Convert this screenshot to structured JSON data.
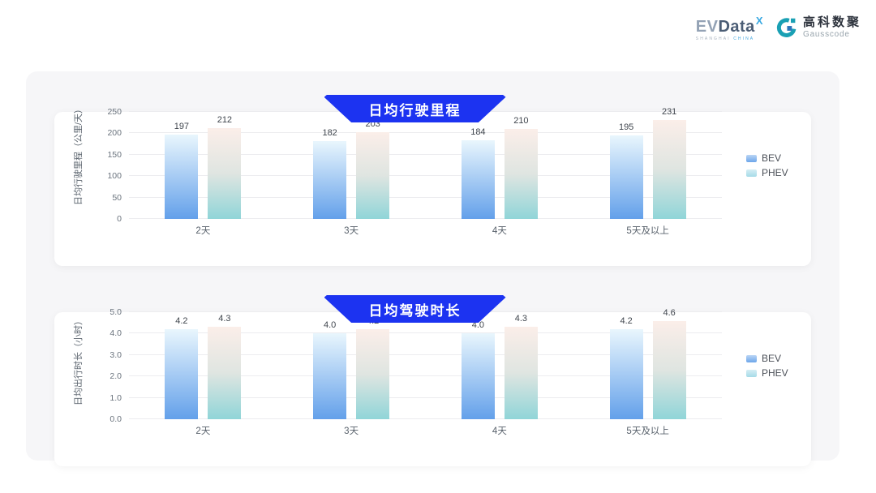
{
  "logo": {
    "evdata_ev": "EV",
    "evdata_rest": "Data",
    "evdata_sup": "X",
    "evdata_sub1": "SHANGHAI",
    "evdata_sub2": "CHINA",
    "gauss_cn": "高科数聚",
    "gauss_en": "Gausscode"
  },
  "colors": {
    "banner_blue": "#1c33f1",
    "container_gray": "#f6f6f8",
    "bev_gradient_top": "#e9f6fd",
    "bev_gradient_bottom": "#63a0ea",
    "phev_gradient_top": "#fbeee9",
    "phev_gradient_mid": "#dfe5e1",
    "phev_gradient_bottom": "#90d5d8",
    "legend_bev": "#6da6ea",
    "legend_phev": "#a6dbe8",
    "gauss_teal": "#1aa0b4",
    "gauss_blue": "#2b74ba",
    "evdata_blue": "#38a8e2"
  },
  "chart_data": [
    {
      "type": "bar",
      "title": "日均行驶里程",
      "ylabel": "日均行驶里程（公里/天）",
      "xlabel": "",
      "categories": [
        "2天",
        "3天",
        "4天",
        "5天及以上"
      ],
      "series": [
        {
          "name": "BEV",
          "values": [
            197,
            182,
            184,
            195
          ],
          "labels": [
            "197",
            "182",
            "184",
            "195"
          ],
          "color_top": "#e9f6fd",
          "color_bottom": "#63a0ea",
          "legend_color": "#6da6ea"
        },
        {
          "name": "PHEV",
          "values": [
            212,
            203,
            210,
            231
          ],
          "labels": [
            "212",
            "203",
            "210",
            "231"
          ],
          "color_top": "#fbeee9",
          "color_mid": "#dfe5e1",
          "color_bottom": "#90d5d8",
          "legend_color": "#a6dbe8"
        }
      ],
      "ylim": [
        0,
        250
      ],
      "yticks": [
        "0",
        "50",
        "100",
        "150",
        "200",
        "250"
      ],
      "legend": [
        "BEV",
        "PHEV"
      ],
      "legend_position": "right",
      "grid": true
    },
    {
      "type": "bar",
      "title": "日均驾驶时长",
      "ylabel": "日均出行时长（小时）",
      "xlabel": "",
      "categories": [
        "2天",
        "3天",
        "4天",
        "5天及以上"
      ],
      "series": [
        {
          "name": "BEV",
          "values": [
            4.2,
            4.0,
            4.0,
            4.2
          ],
          "labels": [
            "4.2",
            "4.0",
            "4.0",
            "4.2"
          ],
          "color_top": "#e9f6fd",
          "color_bottom": "#63a0ea",
          "legend_color": "#6da6ea"
        },
        {
          "name": "PHEV",
          "values": [
            4.3,
            4.2,
            4.3,
            4.6
          ],
          "labels": [
            "4.3",
            "4.2",
            "4.3",
            "4.6"
          ],
          "color_top": "#fbeee9",
          "color_mid": "#dfe5e1",
          "color_bottom": "#90d5d8",
          "legend_color": "#a6dbe8"
        }
      ],
      "ylim": [
        0,
        5
      ],
      "yticks": [
        "0.0",
        "1.0",
        "2.0",
        "3.0",
        "4.0",
        "5.0"
      ],
      "legend": [
        "BEV",
        "PHEV"
      ],
      "legend_position": "right",
      "grid": true
    }
  ]
}
